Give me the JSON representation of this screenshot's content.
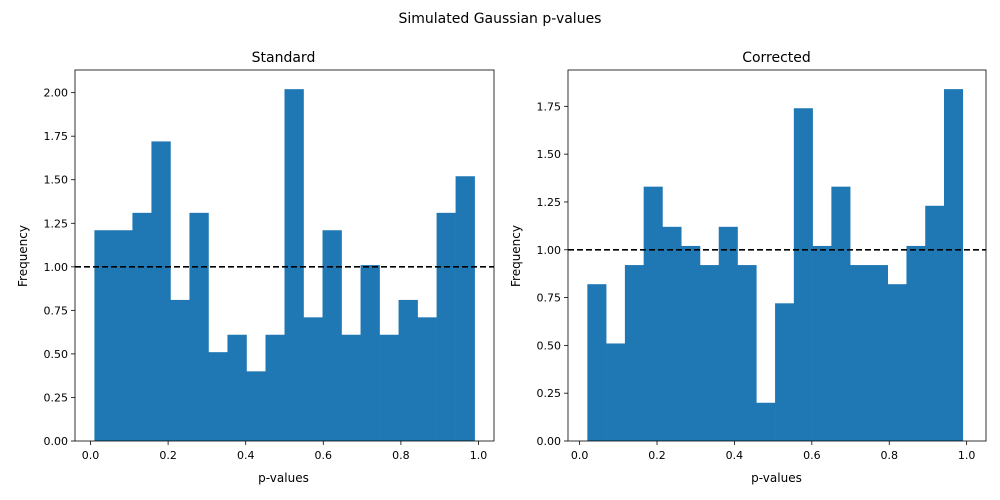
{
  "figure": {
    "suptitle": "Simulated Gaussian p-values"
  },
  "chart_data": [
    {
      "type": "bar",
      "title": "Standard",
      "xlabel": "p-values",
      "ylabel": "Frequency",
      "xlim": [
        -0.04,
        1.04
      ],
      "ylim": [
        0,
        2.13
      ],
      "xticks": [
        "0.0",
        "0.2",
        "0.4",
        "0.6",
        "0.8",
        "1.0"
      ],
      "yticks": [
        "0.00",
        "0.25",
        "0.50",
        "0.75",
        "1.00",
        "1.25",
        "1.50",
        "1.75",
        "2.00"
      ],
      "bin_range": [
        0.01,
        0.99
      ],
      "values": [
        1.21,
        1.21,
        1.31,
        1.72,
        0.81,
        1.31,
        0.51,
        0.61,
        0.4,
        0.61,
        2.02,
        0.71,
        1.21,
        0.61,
        1.01,
        0.61,
        0.81,
        0.71,
        1.31,
        1.52
      ],
      "reference_line": 1.0,
      "bar_color": "#1f77b4",
      "reference_line_color": "#000000",
      "grid": false
    },
    {
      "type": "bar",
      "title": "Corrected",
      "xlabel": "p-values",
      "ylabel": "Frequency",
      "xlim": [
        -0.03,
        1.05
      ],
      "ylim": [
        0,
        1.94
      ],
      "xticks": [
        "0.0",
        "0.2",
        "0.4",
        "0.6",
        "0.8",
        "1.0"
      ],
      "yticks": [
        "0.00",
        "0.25",
        "0.50",
        "0.75",
        "1.00",
        "1.25",
        "1.50",
        "1.75"
      ],
      "bin_range": [
        0.02,
        0.99
      ],
      "values": [
        0.82,
        0.51,
        0.92,
        1.33,
        1.12,
        1.02,
        0.92,
        1.12,
        0.92,
        0.2,
        0.72,
        1.74,
        1.02,
        1.33,
        0.92,
        0.92,
        0.82,
        1.02,
        1.23,
        1.84
      ],
      "reference_line": 1.0,
      "bar_color": "#1f77b4",
      "reference_line_color": "#000000",
      "grid": false
    }
  ]
}
